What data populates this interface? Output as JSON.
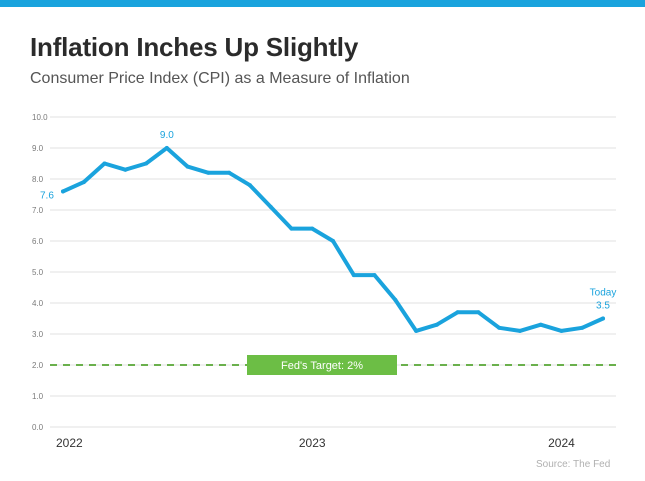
{
  "header": {
    "title": "Inflation Inches Up Slightly",
    "subtitle": "Consumer Price Index (CPI) as a Measure of Inflation"
  },
  "footer": {
    "source": "Source: The Fed"
  },
  "colors": {
    "accent": "#1aa3dd",
    "target_line": "#6ab04c",
    "target_box": "#6cbe45",
    "gridline": "#e0e0e0"
  },
  "chart_data": {
    "type": "line",
    "title": "Inflation Inches Up Slightly",
    "subtitle": "Consumer Price Index (CPI) as a Measure of Inflation",
    "ylim": [
      0,
      10
    ],
    "y_ticks": [
      "0.0",
      "1.0",
      "2.0",
      "3.0",
      "4.0",
      "5.0",
      "6.0",
      "7.0",
      "8.0",
      "9.0",
      "10.0"
    ],
    "x_tick_labels": [
      "2022",
      "2023",
      "2024"
    ],
    "x_tick_indices": [
      0,
      12,
      24
    ],
    "grid": true,
    "series": [
      {
        "values": [
          7.6,
          7.9,
          8.5,
          8.3,
          8.5,
          9.0,
          8.4,
          8.2,
          8.2,
          7.8,
          7.1,
          6.4,
          6.4,
          6.0,
          4.9,
          4.9,
          4.1,
          3.1,
          3.3,
          3.7,
          3.7,
          3.2,
          3.1,
          3.3,
          3.1,
          3.2,
          3.5
        ]
      }
    ],
    "annotations": [
      {
        "index": 0,
        "text": "7.6"
      },
      {
        "index": 5,
        "text": "9.0"
      },
      {
        "index": 26,
        "text": "Today",
        "text2": "3.5"
      }
    ],
    "reference_line": {
      "value": 2.0,
      "label": "Fed's Target: 2%"
    }
  }
}
